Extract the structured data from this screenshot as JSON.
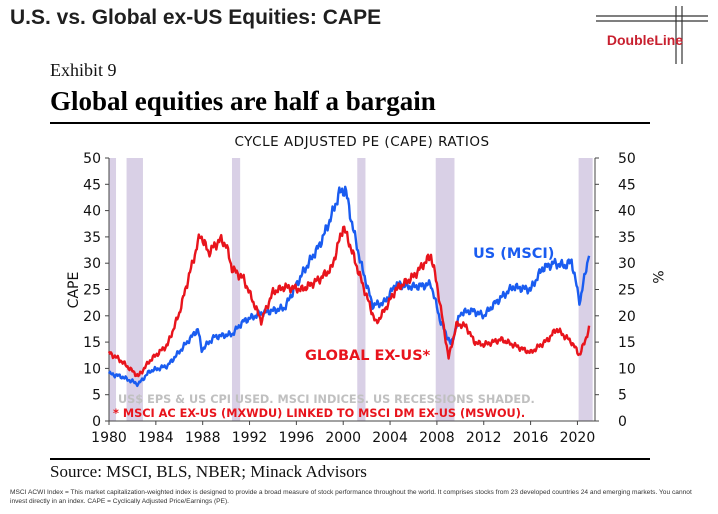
{
  "slide": {
    "title": "U.S. vs. Global ex-US Equities: CAPE",
    "logo_text": "DoubleLine",
    "exhibit": "Exhibit 9",
    "headline": "Global equities are half a bargain",
    "source": "Source: MSCI, BLS, NBER; Minack Advisors",
    "footnote": "MSCI ACWI Index = This market capitalization-weighted index is designed to provide a broad measure of stock performance throughout the world. It comprises stocks from 23 developed countries 24 and emerging markets. You cannot invest directly in an index. CAPE = Cyclically Adjusted Price/Earnings (PE)."
  },
  "colors": {
    "us": "#1a5cf0",
    "global": "#e8141c",
    "recession": "#d9d0e6",
    "logo": "#c8202f"
  },
  "chart_data": {
    "type": "line",
    "title": "CYCLE ADJUSTED PE (CAPE) RATIOS",
    "ylabel": "CAPE",
    "y2label": "%",
    "xlim": [
      1980,
      2021.5
    ],
    "ylim": [
      0,
      50
    ],
    "y2lim": [
      0,
      50
    ],
    "x_ticks": [
      "1980",
      "1984",
      "1988",
      "1992",
      "1996",
      "2000",
      "2004",
      "2008",
      "2012",
      "2016",
      "2020"
    ],
    "y_ticks": [
      "0",
      "5",
      "10",
      "15",
      "20",
      "25",
      "30",
      "35",
      "40",
      "45",
      "50"
    ],
    "y2_ticks": [
      "0",
      "5",
      "10",
      "15",
      "20",
      "25",
      "30",
      "35",
      "40",
      "45",
      "50"
    ],
    "recessions": [
      [
        1980.0,
        1980.6
      ],
      [
        1981.5,
        1982.9
      ],
      [
        1990.5,
        1991.2
      ],
      [
        2001.2,
        2001.9
      ],
      [
        2007.9,
        2009.5
      ],
      [
        2020.1,
        2021.3
      ]
    ],
    "series": [
      {
        "name": "US (MSCI)",
        "label": "US (MSCI)",
        "x": [
          1980.0,
          1981.0,
          1982.5,
          1983.5,
          1985.0,
          1986.5,
          1987.6,
          1987.9,
          1989.0,
          1990.5,
          1991.5,
          1993.0,
          1995.0,
          1996.5,
          1998.0,
          1999.0,
          1999.7,
          2000.2,
          2000.8,
          2001.5,
          2002.5,
          2003.5,
          2004.5,
          2006.0,
          2007.5,
          2008.3,
          2009.2,
          2010.0,
          2011.0,
          2012.0,
          2013.0,
          2014.5,
          2016.0,
          2017.0,
          2018.0,
          2019.0,
          2019.5,
          2020.2,
          2021.0
        ],
        "values": [
          9.0,
          8.5,
          7.0,
          9.5,
          10.5,
          14.5,
          17.5,
          13.5,
          16.0,
          16.5,
          19.0,
          20.5,
          21.5,
          28.0,
          33.5,
          39.0,
          43.5,
          44.0,
          37.0,
          30.0,
          22.0,
          22.5,
          26.0,
          25.5,
          26.0,
          19.0,
          14.5,
          20.5,
          21.0,
          20.0,
          22.5,
          25.5,
          25.0,
          29.0,
          30.0,
          29.5,
          30.5,
          22.5,
          32.0
        ]
      },
      {
        "name": "GLOBAL EX-US*",
        "label": "GLOBAL EX-US*",
        "x": [
          1980.0,
          1981.0,
          1982.5,
          1983.5,
          1985.0,
          1986.0,
          1987.0,
          1987.8,
          1988.5,
          1989.5,
          1990.0,
          1990.5,
          1991.5,
          1993.0,
          1994.0,
          1995.0,
          1996.5,
          1998.0,
          1999.0,
          2000.0,
          2000.5,
          2001.5,
          2002.8,
          2003.5,
          2004.5,
          2006.0,
          2007.5,
          2008.0,
          2009.0,
          2009.7,
          2010.5,
          2011.2,
          2012.0,
          2013.5,
          2015.0,
          2016.0,
          2017.5,
          2018.2,
          2019.5,
          2020.2,
          2021.0
        ],
        "values": [
          13.0,
          11.5,
          8.5,
          11.5,
          14.5,
          20.5,
          29.0,
          35.5,
          32.0,
          34.5,
          33.5,
          29.0,
          27.0,
          19.0,
          24.5,
          25.5,
          25.0,
          27.0,
          29.0,
          37.0,
          34.0,
          27.0,
          18.5,
          21.0,
          25.0,
          27.5,
          31.5,
          26.0,
          12.0,
          18.5,
          18.0,
          15.0,
          14.5,
          15.5,
          14.0,
          13.0,
          15.5,
          17.5,
          15.0,
          12.5,
          17.5
        ]
      }
    ],
    "annotations": [
      {
        "text": "US$ EPS & US CPI USED.  MSCI INDICES.  US RECESSIONS SHADED.",
        "color": "#c0c0c0"
      },
      {
        "text": "* MSCI AC EX-US (MXWDU) LINKED TO MSCI DM EX-US (MSWOU).",
        "color": "#e8141c"
      }
    ],
    "grid": false,
    "legend": "inline labels"
  }
}
